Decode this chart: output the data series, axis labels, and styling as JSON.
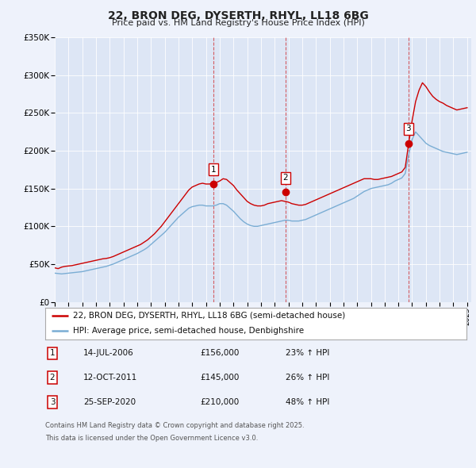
{
  "title": "22, BRON DEG, DYSERTH, RHYL, LL18 6BG",
  "subtitle": "Price paid vs. HM Land Registry's House Price Index (HPI)",
  "ylim": [
    0,
    350000
  ],
  "yticks": [
    0,
    50000,
    100000,
    150000,
    200000,
    250000,
    300000,
    350000
  ],
  "ytick_labels": [
    "£0",
    "£50K",
    "£100K",
    "£150K",
    "£200K",
    "£250K",
    "£300K",
    "£350K"
  ],
  "background_color": "#eef2fb",
  "plot_bg_color": "#dde6f5",
  "red_color": "#cc0000",
  "blue_color": "#7aadd4",
  "sale_marker_color": "#cc0000",
  "sale_events": [
    {
      "label": "1",
      "date": "14-JUL-2006",
      "price": 156000,
      "pct": "23%",
      "x": 2006.54
    },
    {
      "label": "2",
      "date": "12-OCT-2011",
      "price": 145000,
      "pct": "26%",
      "x": 2011.79
    },
    {
      "label": "3",
      "date": "25-SEP-2020",
      "price": 210000,
      "pct": "48%",
      "x": 2020.73
    }
  ],
  "legend_line1": "22, BRON DEG, DYSERTH, RHYL, LL18 6BG (semi-detached house)",
  "legend_line2": "HPI: Average price, semi-detached house, Denbighshire",
  "footer1": "Contains HM Land Registry data © Crown copyright and database right 2025.",
  "footer2": "This data is licensed under the Open Government Licence v3.0.",
  "red_x": [
    1995.0,
    1995.25,
    1995.5,
    1995.75,
    1996.0,
    1996.25,
    1996.5,
    1996.75,
    1997.0,
    1997.25,
    1997.5,
    1997.75,
    1998.0,
    1998.25,
    1998.5,
    1998.75,
    1999.0,
    1999.25,
    1999.5,
    1999.75,
    2000.0,
    2000.25,
    2000.5,
    2000.75,
    2001.0,
    2001.25,
    2001.5,
    2001.75,
    2002.0,
    2002.25,
    2002.5,
    2002.75,
    2003.0,
    2003.25,
    2003.5,
    2003.75,
    2004.0,
    2004.25,
    2004.5,
    2004.75,
    2005.0,
    2005.25,
    2005.5,
    2005.75,
    2006.0,
    2006.25,
    2006.5,
    2006.75,
    2007.0,
    2007.25,
    2007.5,
    2007.75,
    2008.0,
    2008.25,
    2008.5,
    2008.75,
    2009.0,
    2009.25,
    2009.5,
    2009.75,
    2010.0,
    2010.25,
    2010.5,
    2010.75,
    2011.0,
    2011.25,
    2011.5,
    2011.75,
    2012.0,
    2012.25,
    2012.5,
    2012.75,
    2013.0,
    2013.25,
    2013.5,
    2013.75,
    2014.0,
    2014.25,
    2014.5,
    2014.75,
    2015.0,
    2015.25,
    2015.5,
    2015.75,
    2016.0,
    2016.25,
    2016.5,
    2016.75,
    2017.0,
    2017.25,
    2017.5,
    2017.75,
    2018.0,
    2018.25,
    2018.5,
    2018.75,
    2019.0,
    2019.25,
    2019.5,
    2019.75,
    2020.0,
    2020.25,
    2020.5,
    2020.75,
    2021.0,
    2021.25,
    2021.5,
    2021.75,
    2022.0,
    2022.25,
    2022.5,
    2022.75,
    2023.0,
    2023.25,
    2023.5,
    2023.75,
    2024.0,
    2024.25,
    2024.5,
    2024.75,
    2025.0
  ],
  "red_y": [
    45000,
    44000,
    46000,
    47000,
    47500,
    48000,
    49000,
    50000,
    51000,
    52000,
    53000,
    54000,
    55000,
    56000,
    57000,
    57500,
    58500,
    60000,
    62000,
    64000,
    66000,
    68000,
    70000,
    72000,
    74000,
    76000,
    79000,
    82000,
    86000,
    90000,
    95000,
    100000,
    106000,
    112000,
    118000,
    124000,
    130000,
    136000,
    142000,
    148000,
    152000,
    154000,
    156000,
    157000,
    156000,
    156000,
    157000,
    158000,
    160000,
    163000,
    162000,
    158000,
    154000,
    148000,
    143000,
    138000,
    133000,
    130000,
    128000,
    127000,
    127000,
    128000,
    130000,
    131000,
    132000,
    133000,
    134000,
    133000,
    132000,
    130000,
    129000,
    128000,
    128000,
    129000,
    131000,
    133000,
    135000,
    137000,
    139000,
    141000,
    143000,
    145000,
    147000,
    149000,
    151000,
    153000,
    155000,
    157000,
    159000,
    161000,
    163000,
    163000,
    163000,
    162000,
    162000,
    163000,
    164000,
    165000,
    166000,
    168000,
    170000,
    172000,
    178000,
    210000,
    240000,
    265000,
    280000,
    290000,
    285000,
    278000,
    272000,
    268000,
    265000,
    263000,
    260000,
    258000,
    256000,
    254000,
    255000,
    256000,
    257000
  ],
  "blue_x": [
    1995.0,
    1995.25,
    1995.5,
    1995.75,
    1996.0,
    1996.25,
    1996.5,
    1996.75,
    1997.0,
    1997.25,
    1997.5,
    1997.75,
    1998.0,
    1998.25,
    1998.5,
    1998.75,
    1999.0,
    1999.25,
    1999.5,
    1999.75,
    2000.0,
    2000.25,
    2000.5,
    2000.75,
    2001.0,
    2001.25,
    2001.5,
    2001.75,
    2002.0,
    2002.25,
    2002.5,
    2002.75,
    2003.0,
    2003.25,
    2003.5,
    2003.75,
    2004.0,
    2004.25,
    2004.5,
    2004.75,
    2005.0,
    2005.25,
    2005.5,
    2005.75,
    2006.0,
    2006.25,
    2006.5,
    2006.75,
    2007.0,
    2007.25,
    2007.5,
    2007.75,
    2008.0,
    2008.25,
    2008.5,
    2008.75,
    2009.0,
    2009.25,
    2009.5,
    2009.75,
    2010.0,
    2010.25,
    2010.5,
    2010.75,
    2011.0,
    2011.25,
    2011.5,
    2011.75,
    2012.0,
    2012.25,
    2012.5,
    2012.75,
    2013.0,
    2013.25,
    2013.5,
    2013.75,
    2014.0,
    2014.25,
    2014.5,
    2014.75,
    2015.0,
    2015.25,
    2015.5,
    2015.75,
    2016.0,
    2016.25,
    2016.5,
    2016.75,
    2017.0,
    2017.25,
    2017.5,
    2017.75,
    2018.0,
    2018.25,
    2018.5,
    2018.75,
    2019.0,
    2019.25,
    2019.5,
    2019.75,
    2020.0,
    2020.25,
    2020.5,
    2020.75,
    2021.0,
    2021.25,
    2021.5,
    2021.75,
    2022.0,
    2022.25,
    2022.5,
    2022.75,
    2023.0,
    2023.25,
    2023.5,
    2023.75,
    2024.0,
    2024.25,
    2024.5,
    2024.75,
    2025.0
  ],
  "blue_y": [
    38000,
    37500,
    37000,
    37500,
    38000,
    38500,
    39000,
    39500,
    40000,
    41000,
    42000,
    43000,
    44000,
    45000,
    46000,
    47000,
    48500,
    50000,
    52000,
    54000,
    56000,
    58000,
    60000,
    62000,
    64000,
    66500,
    69000,
    72000,
    76000,
    80000,
    84000,
    88000,
    92000,
    97000,
    102000,
    107000,
    112000,
    116000,
    120000,
    124000,
    126000,
    127000,
    128000,
    128000,
    127000,
    127000,
    127000,
    128000,
    130000,
    130000,
    128000,
    124000,
    120000,
    115000,
    110000,
    106000,
    103000,
    101000,
    100000,
    100000,
    101000,
    102000,
    103000,
    104000,
    105000,
    106000,
    107000,
    108000,
    108000,
    107000,
    107000,
    107000,
    108000,
    109000,
    111000,
    113000,
    115000,
    117000,
    119000,
    121000,
    123000,
    125000,
    127000,
    129000,
    131000,
    133000,
    135000,
    137000,
    140000,
    143000,
    146000,
    148000,
    150000,
    151000,
    152000,
    153000,
    154000,
    155000,
    157000,
    160000,
    162000,
    164000,
    170000,
    195000,
    215000,
    225000,
    220000,
    215000,
    210000,
    207000,
    205000,
    203000,
    201000,
    199000,
    198000,
    197000,
    196000,
    195000,
    196000,
    197000,
    198000
  ]
}
